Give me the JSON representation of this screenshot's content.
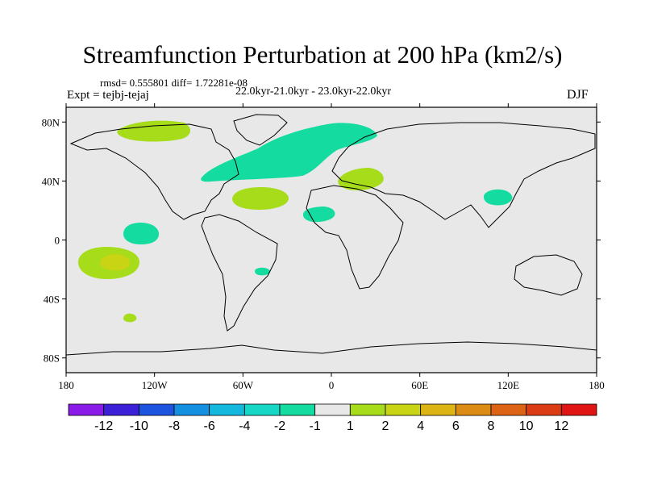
{
  "figure": {
    "title": "Streamfunction Perturbation at 200 hPa (km2/s)",
    "stats": "rmsd= 0.555801 diff= 1.72281e-08",
    "experiment": "Expt = tejbj-tejaj",
    "period": "22.0kyr-21.0kyr - 23.0kyr-22.0kyr",
    "season": "DJF"
  },
  "axes": {
    "y_ticks": [
      {
        "value": 80,
        "label": "80N"
      },
      {
        "value": 40,
        "label": "40N"
      },
      {
        "value": 0,
        "label": "0"
      },
      {
        "value": -40,
        "label": "40S"
      },
      {
        "value": -80,
        "label": "80S"
      }
    ],
    "x_ticks": [
      {
        "value": -180,
        "label": "180"
      },
      {
        "value": -120,
        "label": "120W"
      },
      {
        "value": -60,
        "label": "60W"
      },
      {
        "value": 0,
        "label": "0"
      },
      {
        "value": 60,
        "label": "60E"
      },
      {
        "value": 120,
        "label": "120E"
      },
      {
        "value": 180,
        "label": "180"
      }
    ]
  },
  "colorbar": {
    "colors": [
      "#8a1ae8",
      "#3c20d8",
      "#1c54e0",
      "#1490e0",
      "#14b8dc",
      "#16d6c6",
      "#14dca0",
      "#e8e8e8",
      "#a6dc1a",
      "#c8d414",
      "#dcb414",
      "#dc8c14",
      "#dc6414",
      "#dc3c14",
      "#e01414"
    ],
    "labels": [
      "-12",
      "-10",
      "-8",
      "-6",
      "-4",
      "-2",
      "-1",
      "1",
      "2",
      "4",
      "6",
      "8",
      "10",
      "12"
    ]
  },
  "map_colors": {
    "ocean": "#e8e8e8",
    "neg1": "#14dca0",
    "pos1": "#a6dc1a",
    "pos2": "#c8d414"
  },
  "chart_data": {
    "type": "heatmap",
    "title": "Streamfunction Perturbation at 200 hPa (km2/s)",
    "projection": "cylindrical equidistant",
    "lon_range": [
      -180,
      180
    ],
    "lat_range": [
      -90,
      90
    ],
    "anomalies": [
      {
        "region": "Arctic Canada / Greenland",
        "center_lon": -135,
        "center_lat": 73,
        "value_range": "1 to 2"
      },
      {
        "region": "North Atlantic band",
        "center_lon": -30,
        "center_lat": 55,
        "value_range": "-2 to -1"
      },
      {
        "region": "Subtropical Atlantic",
        "center_lon": -50,
        "center_lat": 27,
        "value_range": "1 to 2"
      },
      {
        "region": "Mediterranean",
        "center_lon": 22,
        "center_lat": 40,
        "value_range": "1 to 2"
      },
      {
        "region": "North Africa",
        "center_lon": -8,
        "center_lat": 16,
        "value_range": "-2 to -1"
      },
      {
        "region": "East China",
        "center_lon": 117,
        "center_lat": 28,
        "value_range": "-2 to -1"
      },
      {
        "region": "Central Pacific",
        "center_lon": -135,
        "center_lat": 5,
        "value_range": "-2 to -1"
      },
      {
        "region": "South Pacific",
        "center_lon": -147,
        "center_lat": -17,
        "value_range": "1 to 4"
      },
      {
        "region": "South Atlantic (Brazil)",
        "center_lon": -47,
        "center_lat": -22,
        "value_range": "-2 to -1"
      },
      {
        "region": "Southern Ocean",
        "center_lon": -143,
        "center_lat": -54,
        "value_range": "1 to 2"
      }
    ]
  }
}
